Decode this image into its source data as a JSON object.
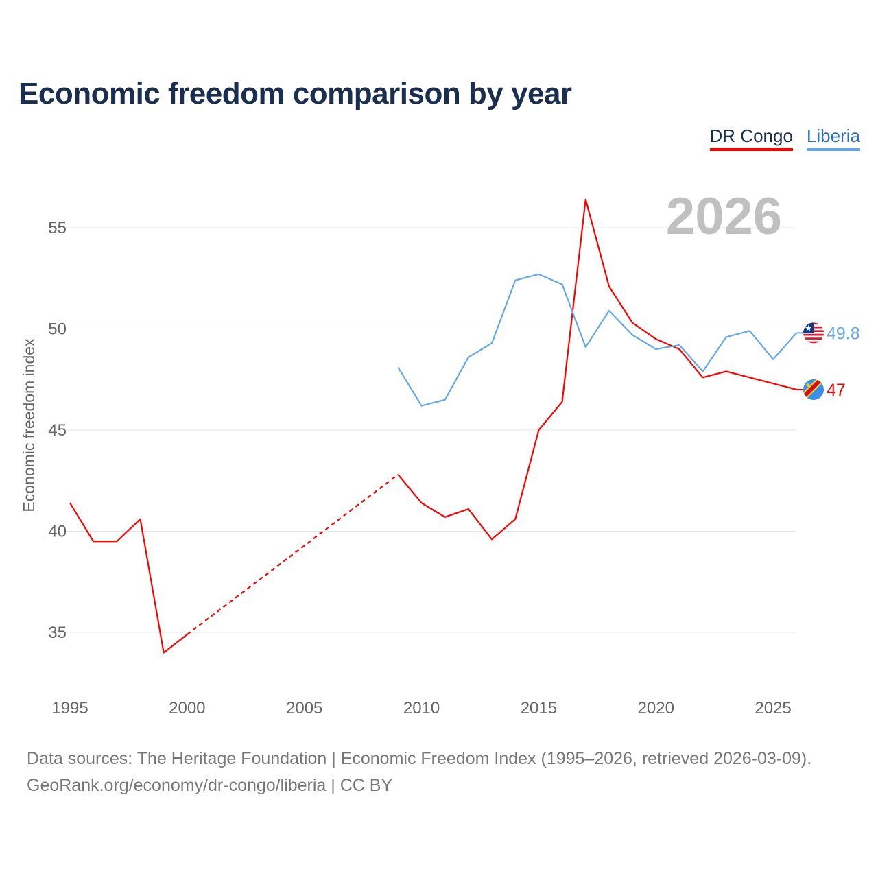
{
  "title": "Economic freedom comparison by year",
  "footer": {
    "line1": "Data sources: The Heritage Foundation | Economic Freedom Index (1995–2026, retrieved 2026-03-09).",
    "line2": "GeoRank.org/economy/dr-congo/liberia | CC BY"
  },
  "chart_data": {
    "type": "line",
    "title": "Economic freedom comparison by year",
    "ylabel": "Economic freedom index",
    "xlabel": "",
    "year_label": "2026",
    "xlim": [
      1995,
      2026
    ],
    "ylim": [
      33,
      57
    ],
    "x_ticks": [
      1995,
      2000,
      2005,
      2010,
      2015,
      2020,
      2025
    ],
    "y_ticks": [
      35,
      40,
      45,
      50,
      55
    ],
    "grid": true,
    "legend_position": "top-right",
    "series": [
      {
        "name": "DR Congo",
        "color": "#ff0000",
        "flag": "dr-congo-flag-icon",
        "end_label": "47",
        "points": [
          [
            1995,
            41.4
          ],
          [
            1996,
            39.5
          ],
          [
            1997,
            39.5
          ],
          [
            1998,
            40.6
          ],
          [
            1999,
            34.0
          ],
          [
            2000,
            34.9
          ],
          [
            2009,
            42.8
          ],
          [
            2010,
            41.4
          ],
          [
            2011,
            40.7
          ],
          [
            2012,
            41.1
          ],
          [
            2013,
            39.6
          ],
          [
            2014,
            40.6
          ],
          [
            2015,
            45.0
          ],
          [
            2016,
            46.4
          ],
          [
            2017,
            56.4
          ],
          [
            2018,
            52.1
          ],
          [
            2019,
            50.3
          ],
          [
            2020,
            49.5
          ],
          [
            2021,
            49.0
          ],
          [
            2022,
            47.6
          ],
          [
            2023,
            47.9
          ],
          [
            2026,
            47.0
          ]
        ],
        "gap_after": 2000
      },
      {
        "name": "Liberia",
        "color": "#64a8ea",
        "flag": "liberia-flag-icon",
        "end_label": "49.8",
        "points": [
          [
            2009,
            48.1
          ],
          [
            2010,
            46.2
          ],
          [
            2011,
            46.5
          ],
          [
            2012,
            48.6
          ],
          [
            2013,
            49.3
          ],
          [
            2014,
            52.4
          ],
          [
            2015,
            52.7
          ],
          [
            2016,
            52.2
          ],
          [
            2017,
            49.1
          ],
          [
            2018,
            50.9
          ],
          [
            2019,
            49.7
          ],
          [
            2020,
            49.0
          ],
          [
            2021,
            49.2
          ],
          [
            2022,
            47.9
          ],
          [
            2023,
            49.6
          ],
          [
            2024,
            49.9
          ],
          [
            2025,
            48.5
          ],
          [
            2026,
            49.8
          ]
        ]
      }
    ]
  }
}
